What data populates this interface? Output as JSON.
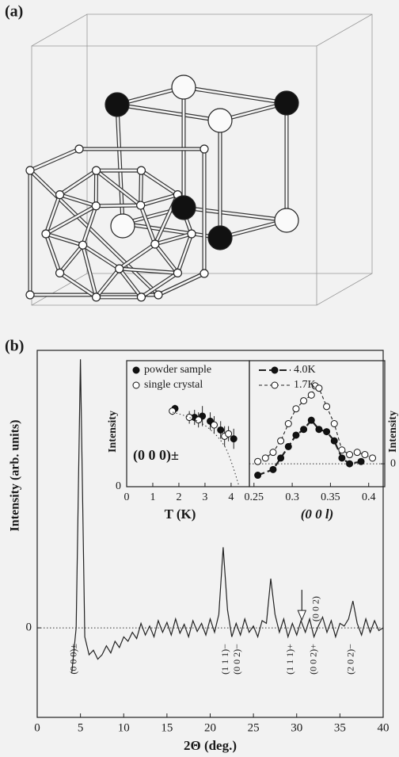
{
  "panels": [
    "(a)",
    "(b)"
  ],
  "chart_data": [
    {
      "type": "line",
      "xlabel": "2Θ (deg.)",
      "ylabel": "Intensity (arb. units)",
      "x": [
        4,
        4.5,
        5,
        5.5,
        6,
        6.5,
        7,
        7.5,
        8,
        8.5,
        9,
        9.5,
        10,
        10.5,
        11,
        11.5,
        12,
        12.5,
        13,
        13.5,
        14,
        14.5,
        15,
        15.5,
        16,
        16.5,
        17,
        17.5,
        18,
        18.5,
        19,
        19.5,
        20,
        20.5,
        21,
        21.5,
        22,
        22.5,
        23,
        23.5,
        24,
        24.5,
        25,
        25.5,
        26,
        26.5,
        27,
        27.5,
        28,
        28.5,
        29,
        29.5,
        30,
        30.5,
        31,
        31.5,
        32,
        32.5,
        33,
        33.5,
        34,
        34.5,
        35,
        35.5,
        36,
        36.5,
        37,
        37.5,
        38,
        38.5,
        39,
        39.5,
        40
      ],
      "series": [
        {
          "color": "#222222",
          "values": [
            -0.5,
            0.0,
            3.0,
            -0.1,
            -0.3,
            -0.25,
            -0.35,
            -0.3,
            -0.2,
            -0.28,
            -0.15,
            -0.22,
            -0.1,
            -0.15,
            -0.05,
            -0.12,
            0.05,
            -0.08,
            0.02,
            -0.1,
            0.08,
            -0.05,
            0.06,
            -0.08,
            0.1,
            -0.06,
            0.04,
            -0.1,
            0.08,
            -0.04,
            0.05,
            -0.08,
            0.1,
            -0.05,
            0.15,
            0.9,
            0.2,
            -0.1,
            0.05,
            -0.08,
            0.1,
            -0.05,
            0.02,
            -0.1,
            0.08,
            0.05,
            0.55,
            0.15,
            -0.05,
            0.1,
            -0.1,
            0.05,
            -0.08,
            0.08,
            -0.05,
            0.1,
            -0.1,
            0.02,
            0.12,
            -0.05,
            0.08,
            -0.1,
            0.05,
            0.02,
            0.1,
            0.3,
            0.05,
            -0.08,
            0.1,
            -0.05,
            0.08,
            -0.03,
            0.0
          ]
        }
      ],
      "xlim": [
        0,
        40
      ],
      "xticks": [
        0,
        5,
        10,
        15,
        20,
        25,
        30,
        35,
        40
      ],
      "ylim": [
        -1,
        3.1
      ],
      "yticks": [
        0
      ],
      "zero_line": true,
      "annotations": [
        {
          "text": "(0 0 0)±",
          "x": 4.3,
          "side": "below"
        },
        {
          "text": "(1 1 1)−",
          "x": 21.8,
          "side": "below"
        },
        {
          "text": "(0 0 2)−",
          "x": 23.2,
          "side": "below"
        },
        {
          "text": "(1 1 1)+",
          "x": 29.3,
          "side": "below"
        },
        {
          "text": "(0 0 2)+",
          "x": 32.0,
          "side": "below"
        },
        {
          "text": "(2 0 2)−",
          "x": 36.3,
          "side": "below"
        },
        {
          "text": "(0 0 2)",
          "x": 32.3,
          "side": "above",
          "arrow_x": 30.6
        }
      ]
    },
    {
      "type": "scatter",
      "xlabel": "T (K)",
      "ylabel": "Intensity",
      "annotation": "(0 0 0)±",
      "xlim": [
        0,
        4.7
      ],
      "xticks": [
        0,
        1,
        2,
        3,
        4
      ],
      "ylim": [
        0,
        1
      ],
      "yticks": [
        0
      ],
      "legend": "top",
      "series": [
        {
          "name": "powder sample",
          "marker": "filled",
          "x": [
            1.85,
            2.6,
            2.9,
            3.2,
            3.6,
            4.1
          ],
          "values": [
            0.62,
            0.55,
            0.56,
            0.52,
            0.45,
            0.38
          ],
          "errors": [
            0.03,
            0.06,
            0.08,
            0.07,
            0.07,
            0.08
          ]
        },
        {
          "name": "single crystal",
          "marker": "open",
          "x": [
            1.75,
            2.4,
            2.75,
            3.35,
            3.75,
            3.9
          ],
          "values": [
            0.6,
            0.55,
            0.53,
            0.49,
            0.4,
            0.42
          ],
          "errors": [
            0.03,
            0.05,
            0.06,
            0.07,
            0.08,
            0.06
          ]
        }
      ]
    },
    {
      "type": "scatter",
      "xlabel": "(0 0 l)",
      "ylabel": "Intensity",
      "xlim": [
        0.244,
        0.421
      ],
      "xticks": [
        0.25,
        0.3,
        0.35,
        0.4
      ],
      "ylim": [
        -0.2,
        0.9
      ],
      "yticks": [
        0
      ],
      "yaxis_side": "right",
      "zero_line": true,
      "legend": "top",
      "series": [
        {
          "name": "4.0K",
          "marker": "filled",
          "linestyle": "long-dash",
          "x": [
            0.255,
            0.275,
            0.285,
            0.295,
            0.305,
            0.315,
            0.325,
            0.335,
            0.345,
            0.355,
            0.365,
            0.375,
            0.39
          ],
          "values": [
            -0.1,
            -0.05,
            0.05,
            0.15,
            0.25,
            0.3,
            0.38,
            0.3,
            0.28,
            0.2,
            0.05,
            0.0,
            0.02
          ]
        },
        {
          "name": "1.7K",
          "marker": "open",
          "linestyle": "dashed",
          "x": [
            0.255,
            0.265,
            0.275,
            0.285,
            0.295,
            0.305,
            0.315,
            0.325,
            0.33,
            0.335,
            0.345,
            0.355,
            0.365,
            0.375,
            0.385,
            0.395,
            0.405
          ],
          "values": [
            0.02,
            0.05,
            0.1,
            0.2,
            0.35,
            0.48,
            0.55,
            0.6,
            0.68,
            0.66,
            0.5,
            0.35,
            0.12,
            0.08,
            0.1,
            0.08,
            0.05
          ]
        }
      ]
    }
  ]
}
